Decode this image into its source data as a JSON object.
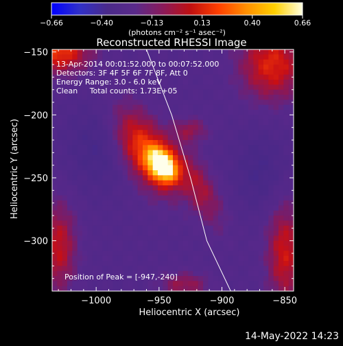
{
  "colorbar": {
    "ticks": [
      "-0.66",
      "-0.40",
      "-0.13",
      "0.13",
      "0.40",
      "0.66"
    ],
    "unit_label": "(photons cm⁻² s⁻¹ asec⁻²)",
    "colors": [
      "#0000ff",
      "#3030c8",
      "#4a2a8a",
      "#5a2a8a",
      "#8a1a5a",
      "#c01010",
      "#ff4000",
      "#ff9000",
      "#ffd000",
      "#ffffe0"
    ]
  },
  "chart_data": {
    "type": "heatmap",
    "title": "Reconstructed RHESSI Image",
    "xlabel": "Heliocentric X (arcsec)",
    "ylabel": "Heliocentric Y (arcsec)",
    "xlim": [
      -1035,
      -843
    ],
    "ylim": [
      -340,
      -148
    ],
    "x_ticks": [
      -1000,
      -950,
      -900,
      -850
    ],
    "x_tick_labels": [
      "−1000",
      "−950",
      "−900",
      "−850"
    ],
    "y_ticks": [
      -150,
      -200,
      -250,
      -300
    ],
    "y_tick_labels": [
      "−150",
      "−200",
      "−250",
      "−300"
    ],
    "value_range": [
      -0.66,
      0.66
    ],
    "peak": {
      "x": -947,
      "y": -240,
      "value": 0.66
    },
    "limb_curve": [
      [
        -960,
        -148
      ],
      [
        -940,
        -200
      ],
      [
        -925,
        -250
      ],
      [
        -912,
        -300
      ],
      [
        -893,
        -340
      ]
    ],
    "annotations": [
      "13-Apr-2014 00:01:52.000 to 00:07:52.000",
      "Detectors: 3F 4F 5F 6F 7F 8F, Att 0",
      "Energy Range: 3.0 - 6.0 keV",
      "Clean     Total counts: 1.73E+05"
    ],
    "peak_label": "Position of Peak = [-947,-240]"
  },
  "footer": {
    "timestamp": "14-May-2022 14:23"
  }
}
